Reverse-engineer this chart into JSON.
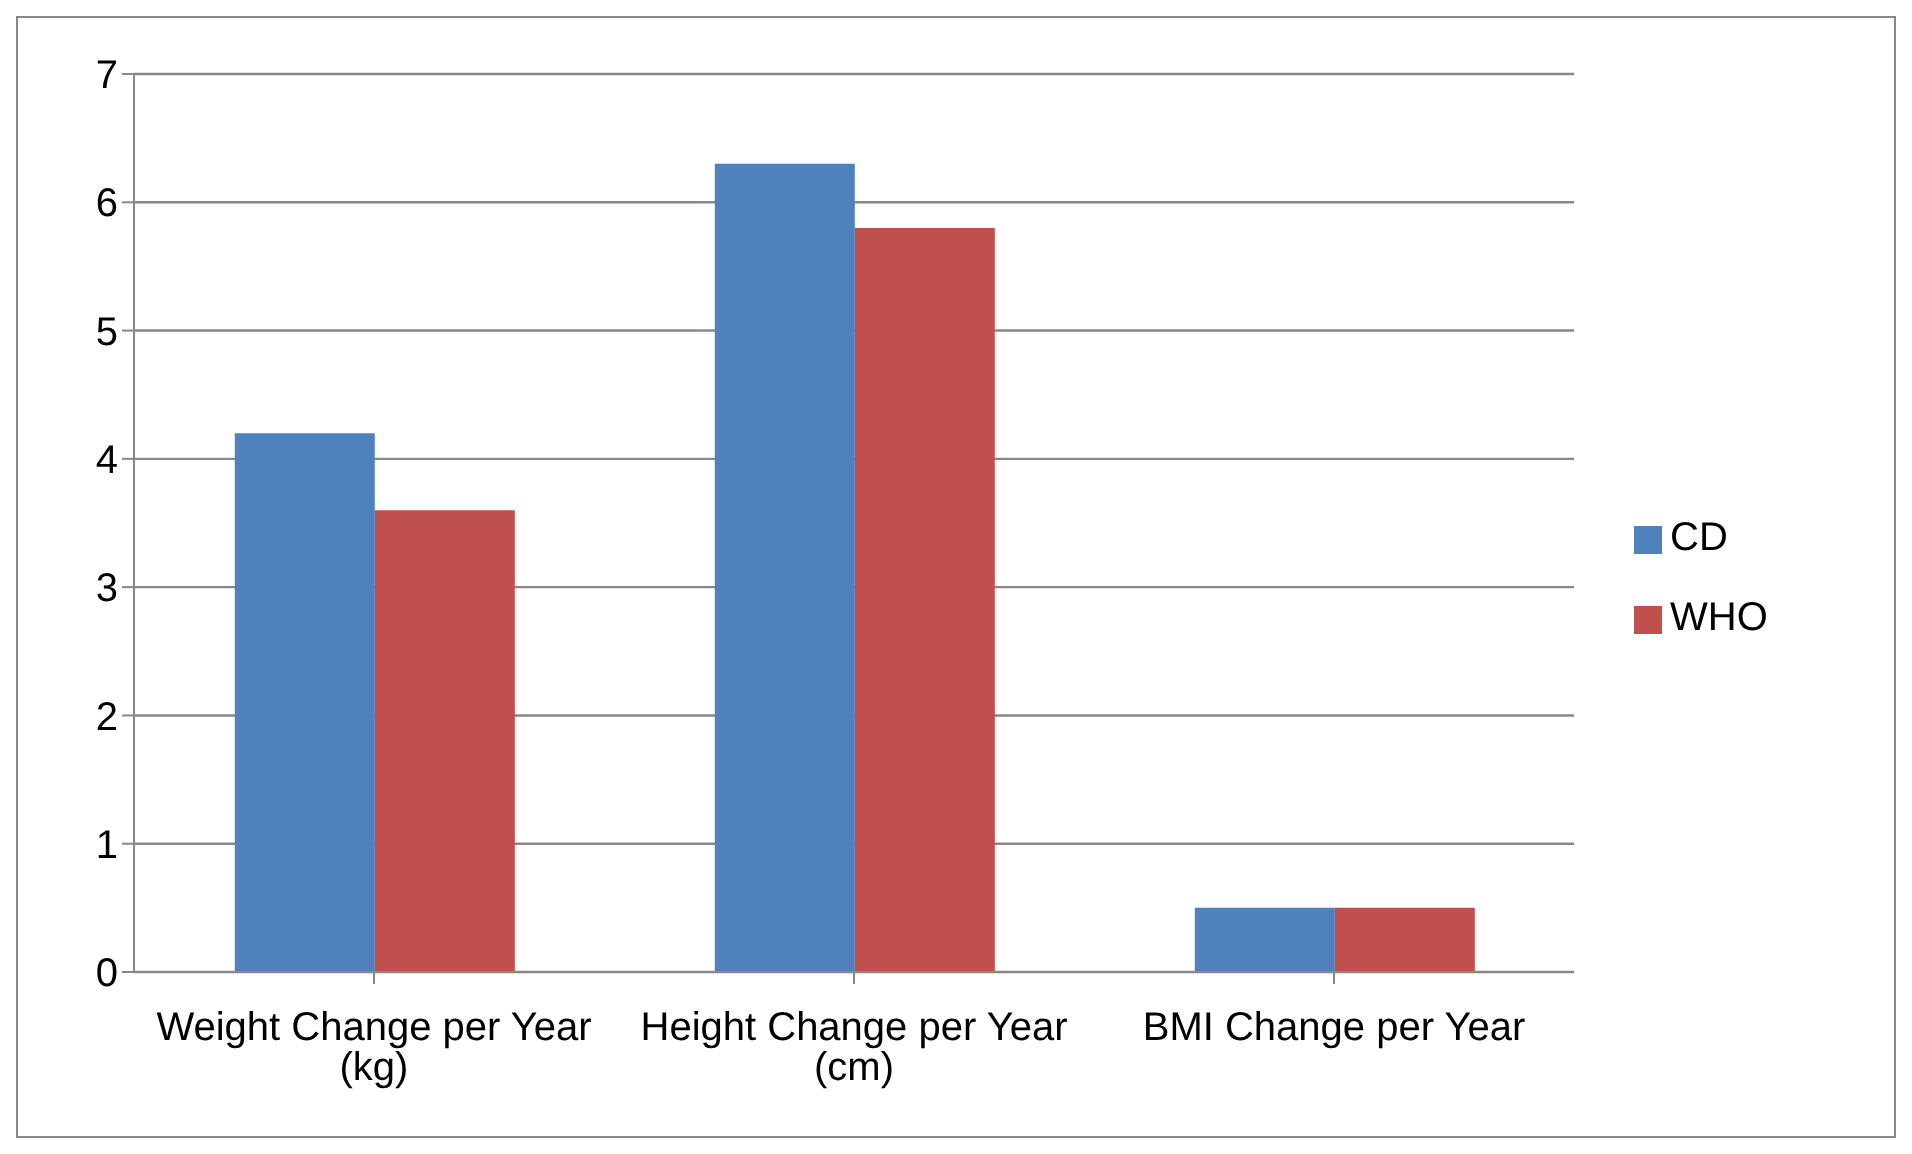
{
  "chart_data": {
    "type": "bar",
    "categories": [
      "Weight Change per Year (kg)",
      "Height Change per Year (cm)",
      "BMI Change per Year"
    ],
    "series": [
      {
        "name": "CD",
        "color": "#4f81bd",
        "values": [
          4.2,
          6.3,
          0.5
        ]
      },
      {
        "name": "WHO",
        "color": "#c0504d",
        "values": [
          3.6,
          5.8,
          0.5
        ]
      }
    ],
    "ylim": [
      0,
      7
    ],
    "yticks": [
      0,
      1,
      2,
      3,
      4,
      5,
      6,
      7
    ],
    "grid": "y",
    "legend": "right"
  }
}
